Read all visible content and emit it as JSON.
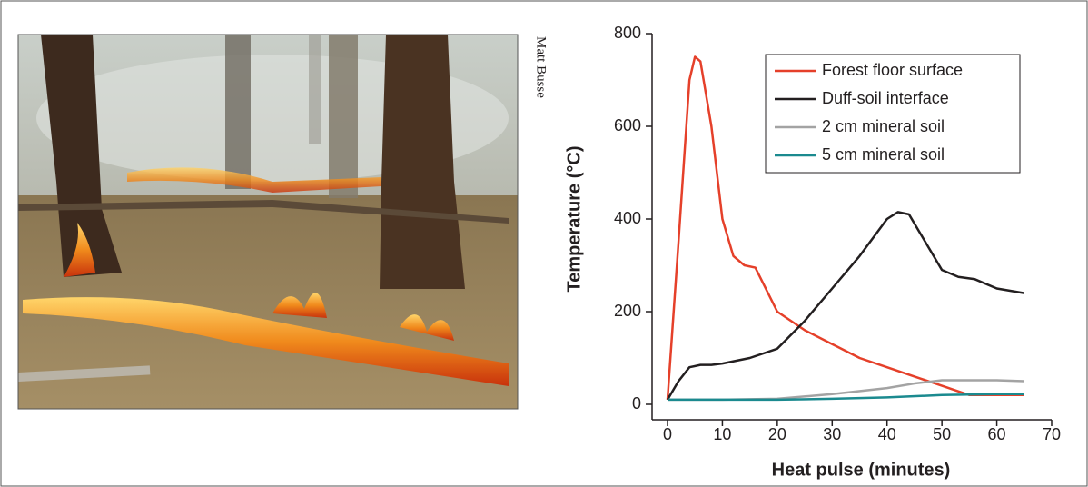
{
  "photo_credit": "Matt Busse",
  "chart_data": {
    "type": "line",
    "xlabel": "Heat pulse (minutes)",
    "ylabel": "Temperature (°C)",
    "xlim": [
      0,
      70
    ],
    "xticks": [
      0,
      10,
      20,
      30,
      40,
      50,
      60,
      70
    ],
    "ylim": [
      0,
      800
    ],
    "yticks": [
      0,
      200,
      400,
      600,
      800
    ],
    "legend": "upper right",
    "series": [
      {
        "name": "Forest floor surface",
        "color": "#e5402a",
        "x": [
          0,
          2,
          4,
          5,
          6,
          8,
          10,
          12,
          14,
          16,
          20,
          25,
          30,
          35,
          40,
          45,
          50,
          55,
          60,
          65
        ],
        "values": [
          10,
          350,
          700,
          750,
          740,
          600,
          400,
          320,
          300,
          295,
          200,
          160,
          130,
          100,
          80,
          60,
          40,
          20,
          20,
          20
        ]
      },
      {
        "name": "Duff-soil interface",
        "color": "#231f20",
        "x": [
          0,
          2,
          4,
          6,
          8,
          10,
          15,
          20,
          25,
          30,
          35,
          40,
          42,
          44,
          47,
          50,
          53,
          56,
          60,
          65
        ],
        "values": [
          10,
          50,
          80,
          85,
          85,
          88,
          100,
          120,
          180,
          250,
          320,
          400,
          415,
          410,
          350,
          290,
          275,
          270,
          250,
          240
        ]
      },
      {
        "name": "2 cm mineral soil",
        "color": "#a3a3a3",
        "x": [
          0,
          10,
          20,
          30,
          40,
          45,
          50,
          55,
          60,
          65
        ],
        "values": [
          10,
          10,
          12,
          22,
          35,
          45,
          52,
          52,
          52,
          50
        ]
      },
      {
        "name": "5 cm mineral soil",
        "color": "#1b8a8f",
        "x": [
          0,
          20,
          30,
          40,
          50,
          60,
          65
        ],
        "values": [
          10,
          10,
          12,
          15,
          20,
          22,
          22
        ]
      }
    ]
  }
}
